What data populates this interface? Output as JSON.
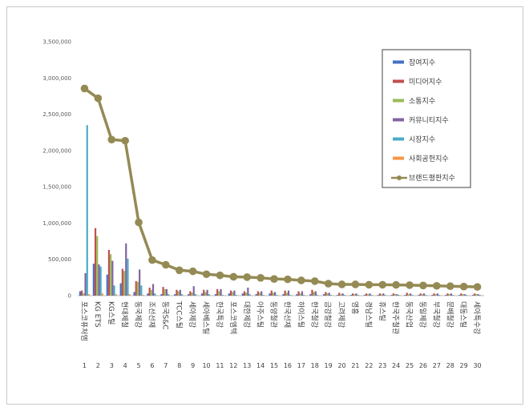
{
  "chart_data": {
    "type": "bar",
    "title": "",
    "xlabel": "",
    "ylabel": "",
    "ylim": [
      0,
      3500000
    ],
    "ytick_labels": [
      "0",
      "500,000",
      "1,000,000",
      "1,500,000",
      "2,000,000",
      "2,500,000",
      "3,000,000",
      "3,500,000"
    ],
    "grid": false,
    "legend_position": "right",
    "categories": [
      "포스코퓨처엠",
      "KG ETS",
      "KG스틸",
      "현대제철",
      "동국제강",
      "조선선재",
      "동국S&C",
      "TCC스틸",
      "세아제강",
      "세아베스틸",
      "한국특강",
      "포스코엠텍",
      "대한제강",
      "아주스틸",
      "동양철관",
      "한국선재",
      "하이스틸",
      "한국철강",
      "금강철강",
      "고려제강",
      "영흥",
      "경남스틸",
      "휴스틸",
      "한국주철관",
      "동국산업",
      "동일제강",
      "부국철강",
      "문배철강",
      "대동스틸",
      "세아특수강"
    ],
    "indices": [
      "1",
      "2",
      "3",
      "4",
      "5",
      "6",
      "7",
      "8",
      "9",
      "10",
      "11",
      "12",
      "13",
      "14",
      "15",
      "16",
      "17",
      "18",
      "19",
      "20",
      "21",
      "22",
      "23",
      "24",
      "25",
      "26",
      "27",
      "28",
      "29",
      "30"
    ],
    "series": [
      {
        "name": "참여지수",
        "color": "#4472c4",
        "values": [
          60000,
          440000,
          290000,
          170000,
          50000,
          30000,
          20000,
          20000,
          20000,
          30000,
          20000,
          30000,
          30000,
          20000,
          30000,
          20000,
          20000,
          20000,
          20000,
          10000,
          10000,
          10000,
          10000,
          10000,
          10000,
          10000,
          10000,
          10000,
          10000,
          10000
        ]
      },
      {
        "name": "미디어지수",
        "color": "#c0504d",
        "values": [
          70000,
          930000,
          630000,
          370000,
          200000,
          110000,
          120000,
          80000,
          60000,
          80000,
          90000,
          70000,
          60000,
          60000,
          70000,
          70000,
          60000,
          80000,
          50000,
          40000,
          30000,
          30000,
          30000,
          30000,
          40000,
          30000,
          30000,
          30000,
          30000,
          30000
        ]
      },
      {
        "name": "소통지수",
        "color": "#9bbb59",
        "values": [
          30000,
          820000,
          570000,
          340000,
          190000,
          80000,
          90000,
          60000,
          40000,
          50000,
          60000,
          50000,
          40000,
          40000,
          40000,
          40000,
          30000,
          50000,
          30000,
          20000,
          20000,
          20000,
          20000,
          20000,
          20000,
          20000,
          20000,
          20000,
          20000,
          20000
        ]
      },
      {
        "name": "커뮤니티지수",
        "color": "#8064a2",
        "values": [
          310000,
          430000,
          480000,
          720000,
          360000,
          160000,
          90000,
          80000,
          130000,
          80000,
          90000,
          70000,
          110000,
          60000,
          50000,
          70000,
          60000,
          60000,
          40000,
          30000,
          30000,
          30000,
          30000,
          20000,
          30000,
          30000,
          30000,
          30000,
          20000,
          20000
        ]
      },
      {
        "name": "시장지수",
        "color": "#4bacc6",
        "values": [
          2350000,
          400000,
          140000,
          510000,
          140000,
          30000,
          20000,
          20000,
          20000,
          20000,
          10000,
          10000,
          20000,
          10000,
          10000,
          10000,
          10000,
          10000,
          10000,
          10000,
          10000,
          10000,
          10000,
          10000,
          10000,
          10000,
          10000,
          10000,
          10000,
          10000
        ]
      },
      {
        "name": "사회공헌지수",
        "color": "#f79646",
        "values": [
          20000,
          30000,
          20000,
          20000,
          10000,
          5000,
          5000,
          5000,
          5000,
          5000,
          5000,
          5000,
          5000,
          5000,
          5000,
          5000,
          5000,
          5000,
          5000,
          5000,
          5000,
          5000,
          5000,
          5000,
          5000,
          5000,
          5000,
          5000,
          5000,
          5000
        ]
      }
    ],
    "line": {
      "name": "브랜드평판지수",
      "color": "#948a54",
      "values": [
        2855000,
        2720000,
        2150000,
        2135000,
        1010000,
        490000,
        425000,
        350000,
        335000,
        295000,
        280000,
        260000,
        255000,
        245000,
        230000,
        225000,
        210000,
        200000,
        165000,
        155000,
        155000,
        150000,
        150000,
        148000,
        145000,
        140000,
        135000,
        130000,
        125000,
        120000
      ]
    }
  }
}
